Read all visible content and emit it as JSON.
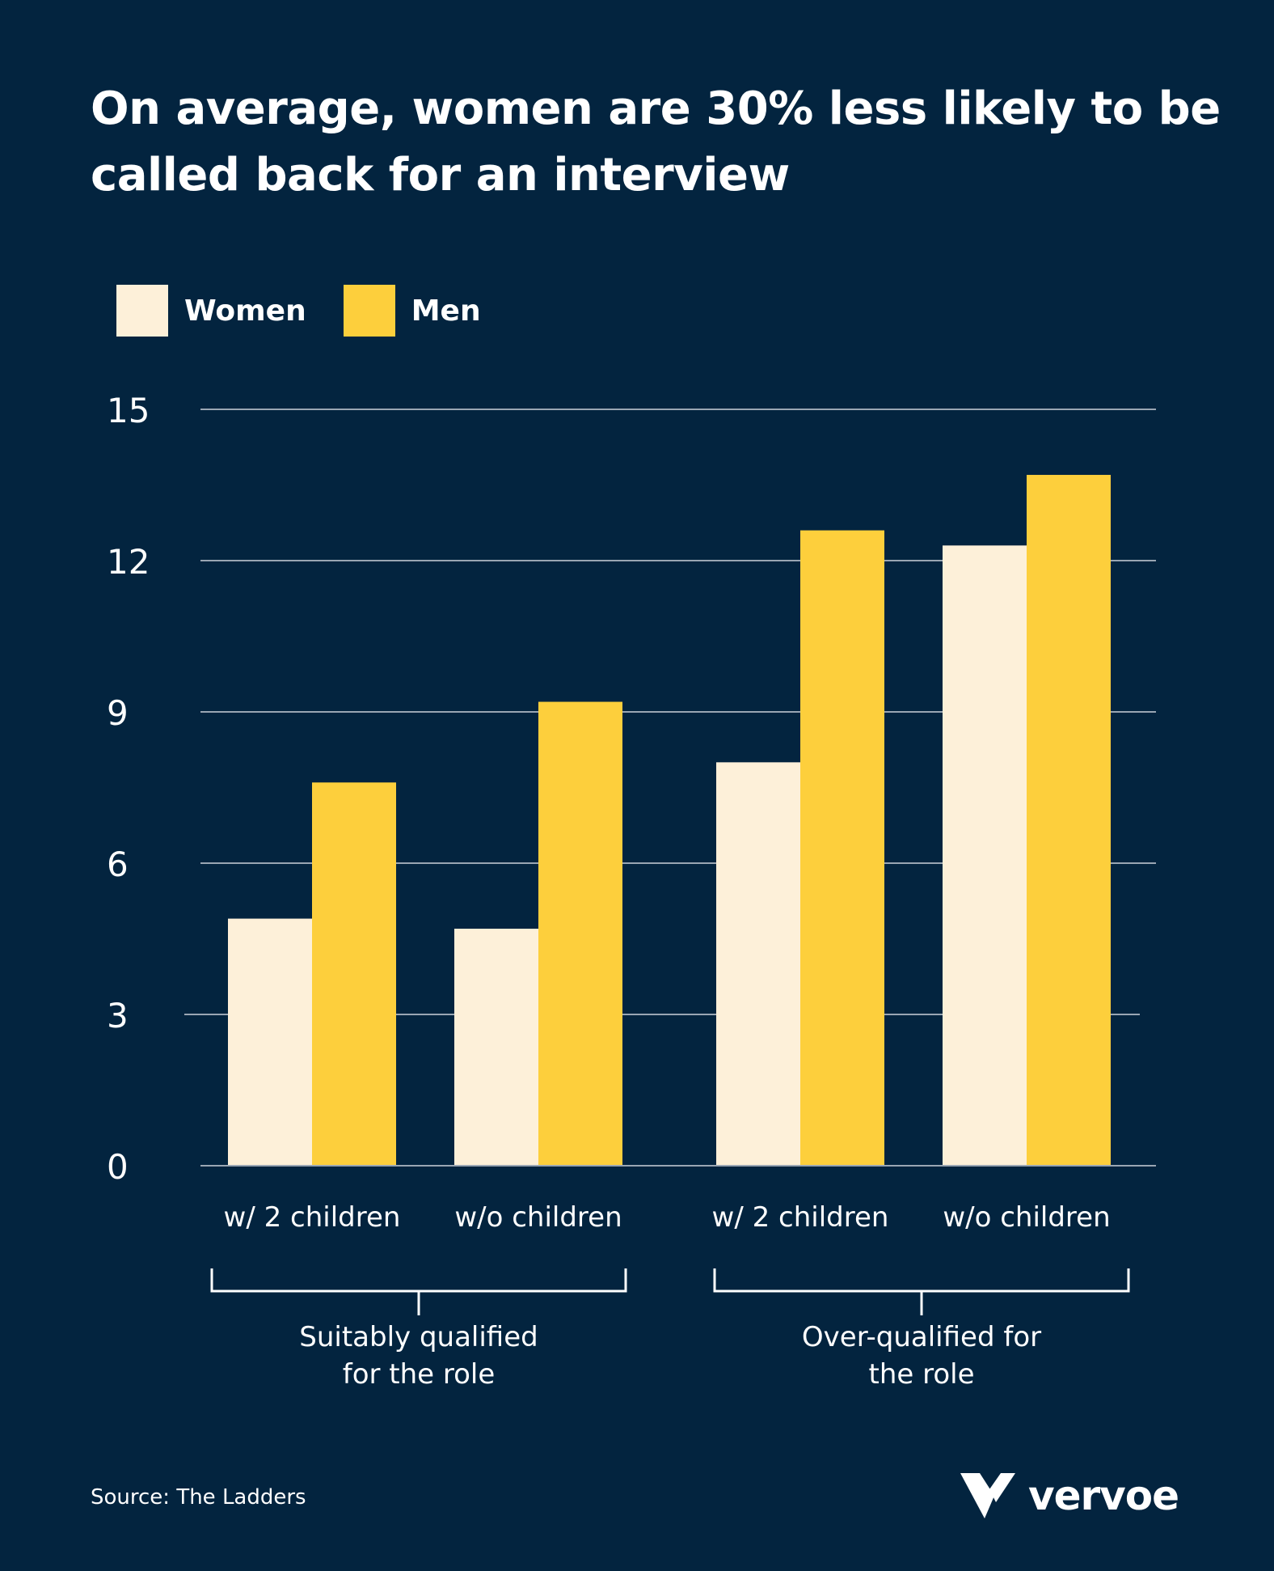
{
  "title": "On average, women are 30% less likely to be called back for an interview",
  "colors": {
    "background": "#03243f",
    "women": "#fdf0d9",
    "men": "#fdcf3c",
    "grid": "#9aa6b3",
    "text": "#ffffff"
  },
  "chart_data": {
    "type": "bar",
    "title": "On average, women are 30% less likely to be called back for an interview",
    "categories": [
      "w/ 2 children",
      "w/o children",
      "w/ 2 children",
      "w/o children"
    ],
    "groups": [
      {
        "label": "Suitably qualified for the role",
        "label_lines": [
          "Suitably qualified",
          "for the role"
        ],
        "categories": [
          0,
          1
        ]
      },
      {
        "label": "Over-qualified for the role",
        "label_lines": [
          "Over-qualified for",
          "the role"
        ],
        "categories": [
          2,
          3
        ]
      }
    ],
    "series": [
      {
        "name": "Women",
        "color": "#fdf0d9",
        "values": [
          4.9,
          4.7,
          8.0,
          12.3
        ]
      },
      {
        "name": "Men",
        "color": "#fdcf3c",
        "values": [
          7.6,
          9.2,
          12.6,
          13.7
        ]
      }
    ],
    "ylim": [
      0,
      15
    ],
    "yticks": [
      0,
      3,
      6,
      9,
      12,
      15
    ],
    "xlabel": "",
    "ylabel": "",
    "grid": true,
    "legend": "top-left"
  },
  "legend": {
    "items": [
      {
        "label": "Women",
        "color": "#fdf0d9"
      },
      {
        "label": "Men",
        "color": "#fdcf3c"
      }
    ]
  },
  "source": "Source: The Ladders",
  "logo": {
    "text": "vervoe",
    "icon": "vervoe-v-logo-icon"
  }
}
